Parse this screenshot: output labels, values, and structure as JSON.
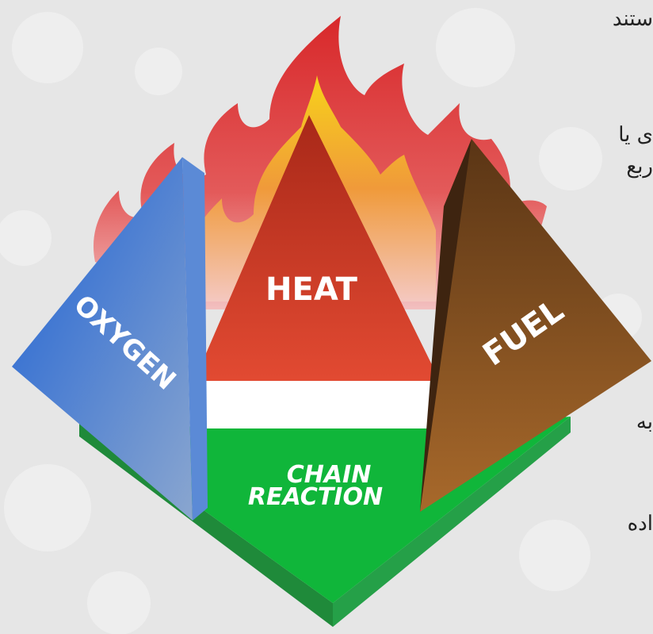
{
  "diagram": {
    "labels": {
      "heat": "HEAT",
      "oxygen": "OXYGEN",
      "fuel": "FUEL",
      "chain": [
        "CHAIN",
        "REACTION"
      ]
    },
    "side_text": [
      "ستند",
      "ى يا",
      "ربع",
      "به",
      "اده"
    ]
  }
}
